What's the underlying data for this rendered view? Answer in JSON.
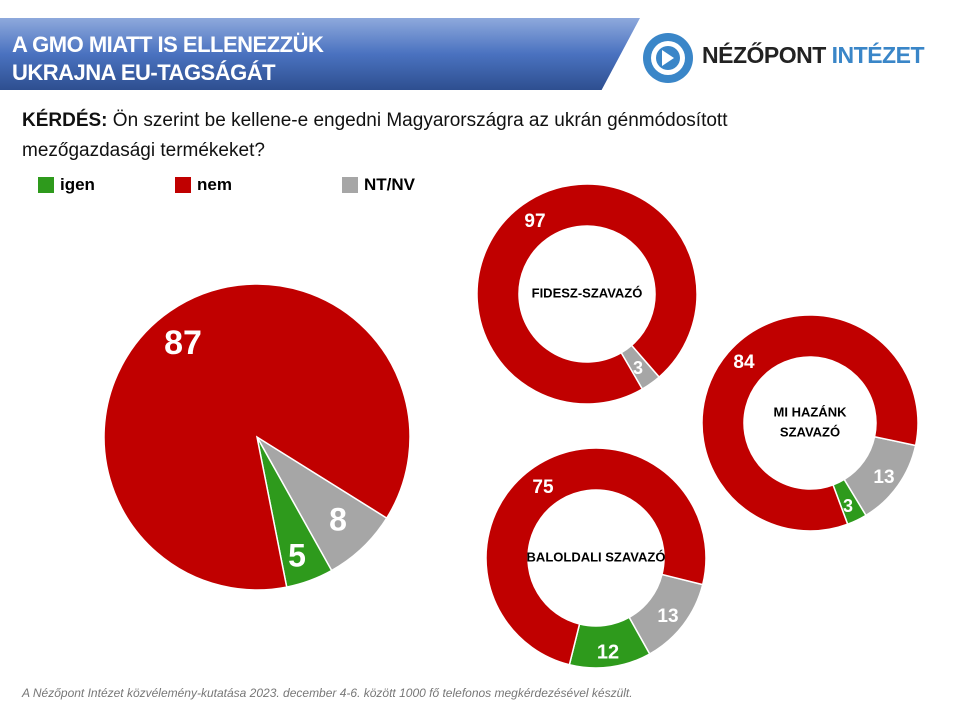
{
  "header": {
    "title_line1": "A GMO MIATT IS ELLENEZZÜK",
    "title_line2": "UKRAJNA EU-TAGSÁGÁT",
    "logo_name": "NÉZŐPONT",
    "logo_name2": "INTÉZET"
  },
  "question": {
    "label": "KÉRDÉS:",
    "text": " Ön szerint be kellene-e engedni Magyarországra az ukrán génmódosított mezőgazdasági termékeket?"
  },
  "legend": [
    {
      "label": "igen",
      "color": "#2e9a1c"
    },
    {
      "label": "nem",
      "color": "#c00000"
    },
    {
      "label": "NT/NV",
      "color": "#a6a6a6"
    }
  ],
  "footer": "A Nézőpont Intézet közvélemény-kutatása  2023. december 4-6. között 1000 fő telefonos megkérdezésével  készült.",
  "chart_data": [
    {
      "type": "pie",
      "title": "",
      "categories": [
        "igen",
        "nem",
        "NT/NV"
      ],
      "values": [
        5,
        87,
        8
      ]
    },
    {
      "type": "donut",
      "title": "FIDESZ-SZAVAZÓ",
      "categories": [
        "igen",
        "nem",
        "NT/NV"
      ],
      "values": [
        0,
        97,
        3
      ]
    },
    {
      "type": "donut",
      "title": "MI HAZÁNK SZAVAZÓ",
      "categories": [
        "igen",
        "nem",
        "NT/NV"
      ],
      "values": [
        3,
        84,
        13
      ]
    },
    {
      "type": "donut",
      "title": "BALOLDALI SZAVAZÓ",
      "categories": [
        "igen",
        "nem",
        "NT/NV"
      ],
      "values": [
        12,
        75,
        13
      ]
    }
  ]
}
